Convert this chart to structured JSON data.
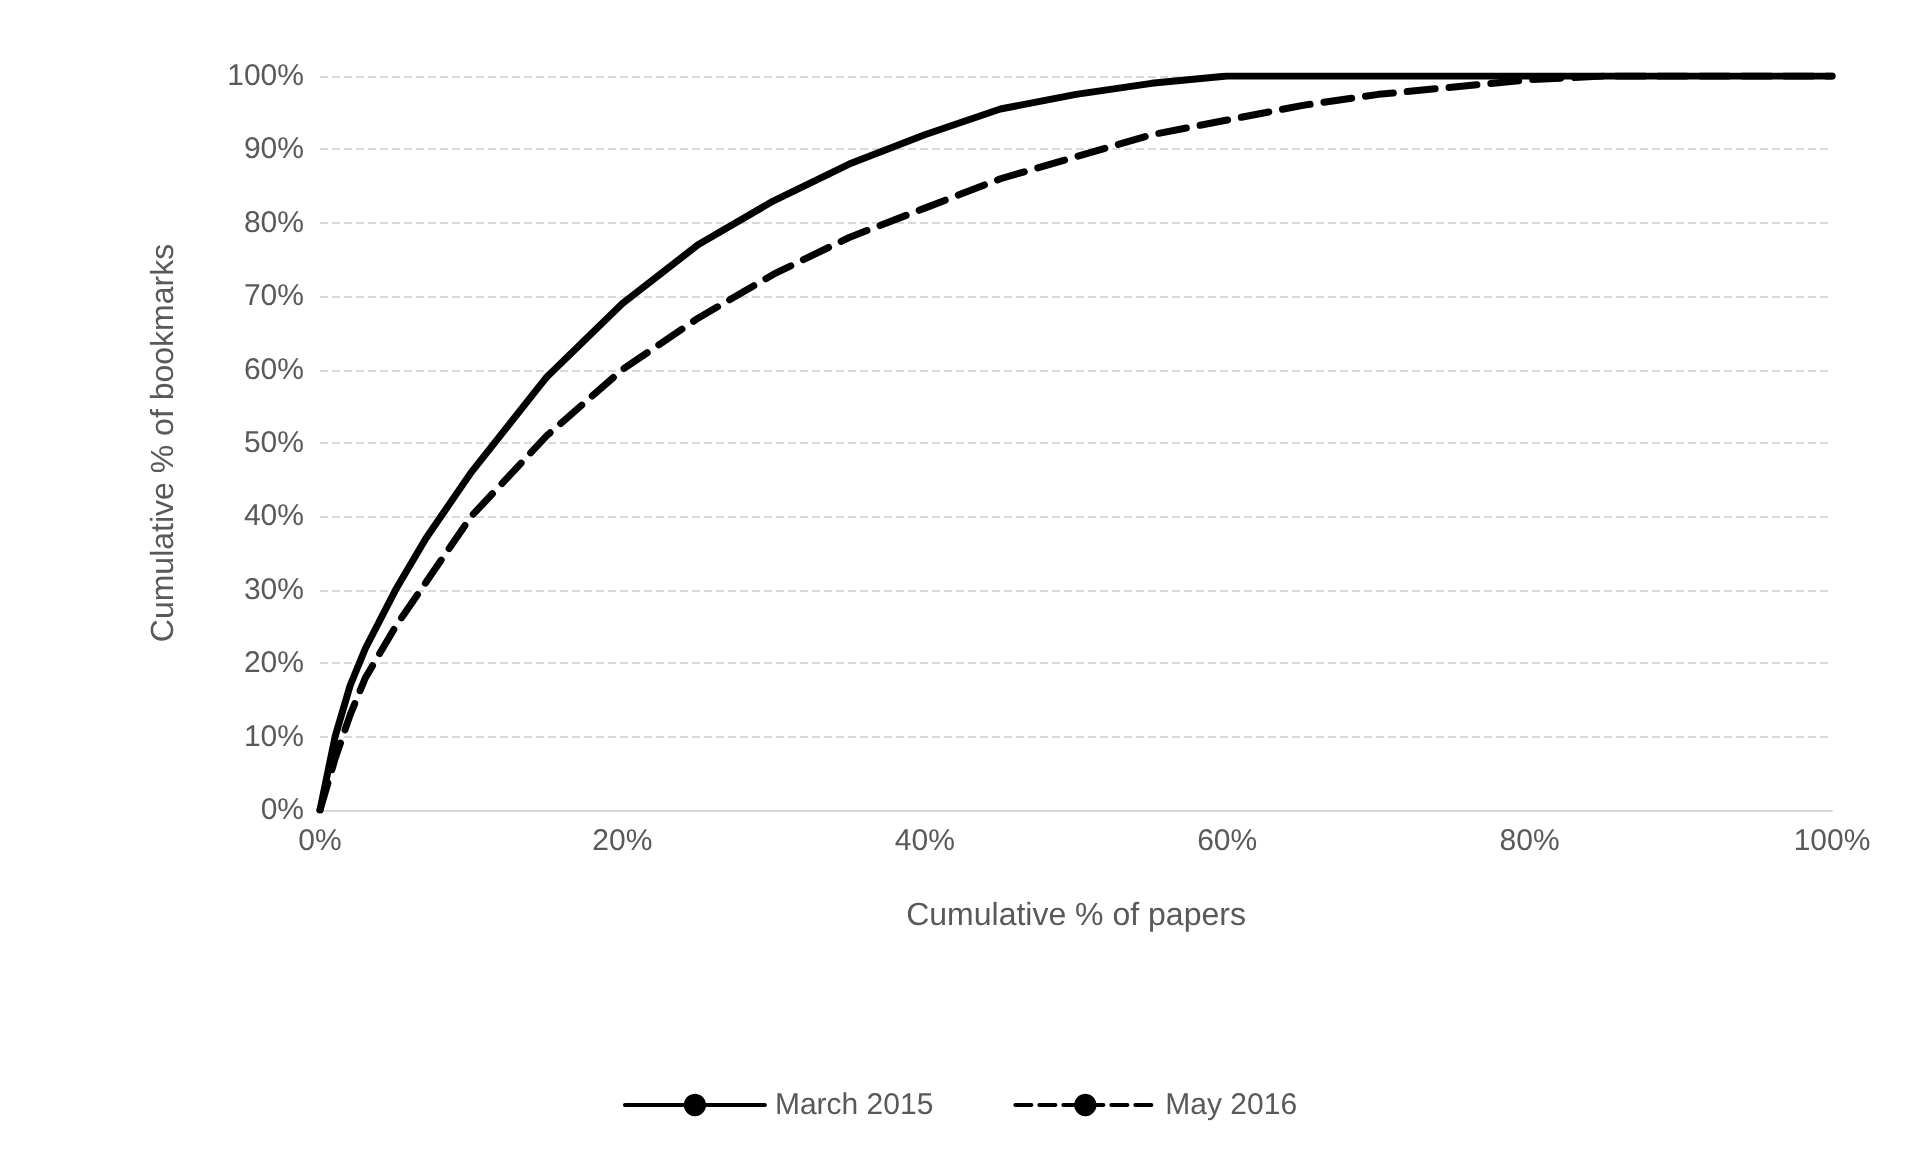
{
  "chart_data": {
    "type": "line",
    "xlabel": "Cumulative % of papers",
    "ylabel": "Cumulative % of bookmarks",
    "xlim": [
      0,
      100
    ],
    "xticks": [
      {
        "value": 0,
        "label": "0%"
      },
      {
        "value": 20,
        "label": "20%"
      },
      {
        "value": 40,
        "label": "40%"
      },
      {
        "value": 60,
        "label": "60%"
      },
      {
        "value": 80,
        "label": "80%"
      },
      {
        "value": 100,
        "label": "100%"
      }
    ],
    "ylim": [
      0,
      100
    ],
    "yticks": [
      {
        "value": 0,
        "label": "0%"
      },
      {
        "value": 10,
        "label": "10%"
      },
      {
        "value": 20,
        "label": "20%"
      },
      {
        "value": 30,
        "label": "30%"
      },
      {
        "value": 40,
        "label": "40%"
      },
      {
        "value": 50,
        "label": "50%"
      },
      {
        "value": 60,
        "label": "60%"
      },
      {
        "value": 70,
        "label": "70%"
      },
      {
        "value": 80,
        "label": "80%"
      },
      {
        "value": 90,
        "label": "90%"
      },
      {
        "value": 100,
        "label": "100%"
      }
    ],
    "grid": "y",
    "legend": "bottom",
    "marker": "none",
    "series": [
      {
        "name": "March 2015",
        "color": "#000000",
        "line_style": "solid",
        "x": [
          0,
          1,
          2,
          3,
          5,
          7,
          10,
          15,
          20,
          25,
          30,
          35,
          40,
          45,
          50,
          55,
          60,
          100
        ],
        "values": [
          0,
          10,
          17,
          22,
          30,
          37,
          46,
          59,
          69,
          77,
          83,
          88,
          92,
          95.5,
          97.5,
          99,
          100,
          100
        ]
      },
      {
        "name": "May 2016",
        "color": "#000000",
        "line_style": "dashed",
        "x": [
          0,
          1,
          2,
          3,
          5,
          7,
          10,
          15,
          20,
          25,
          30,
          35,
          40,
          45,
          50,
          55,
          60,
          65,
          70,
          75,
          80,
          85,
          100
        ],
        "values": [
          0,
          7,
          13,
          18,
          25,
          31,
          40,
          51,
          60,
          67,
          73,
          78,
          82,
          86,
          89,
          92,
          94,
          96,
          97.5,
          98.5,
          99.5,
          100,
          100
        ]
      }
    ]
  }
}
